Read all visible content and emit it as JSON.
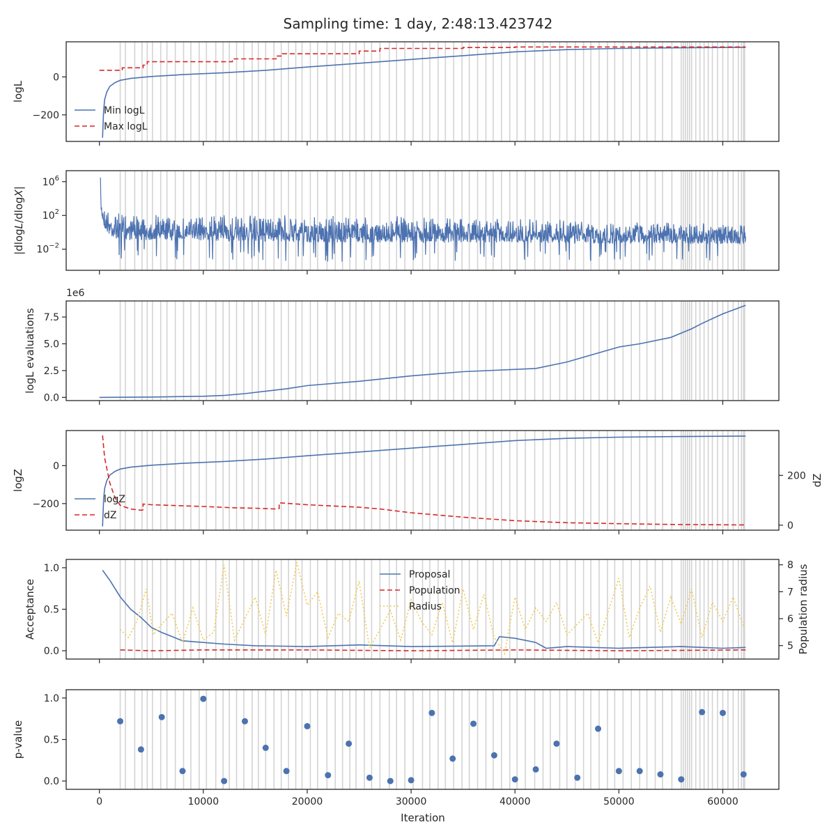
{
  "figure": {
    "title": "Sampling time: 1 day, 2:48:13.423742",
    "xlabel": "Iteration",
    "xticks": [
      0,
      10000,
      20000,
      30000,
      40000,
      50000,
      60000
    ]
  },
  "colors": {
    "blue": "#4c72b0",
    "red": "#d62728",
    "yellow": "#f2c94c",
    "insertion_lines": "#d3d3d3"
  },
  "chart_data": [
    {
      "id": "logl",
      "type": "line",
      "ylabel": "logL",
      "xlim": [
        -3200,
        65400
      ],
      "ylim": [
        -340,
        185
      ],
      "yticks": [
        {
          "v": 0,
          "t": "0"
        },
        {
          "v": -200,
          "t": "−200"
        }
      ],
      "legend": "lower-left",
      "series": [
        {
          "name": "Min logL",
          "style": "solid",
          "color": "blue",
          "x": [
            300,
            400,
            500,
            700,
            1000,
            1500,
            2000,
            3000,
            5000,
            8000,
            12000,
            16000,
            20000,
            25000,
            30000,
            35000,
            40000,
            45000,
            50000,
            55000,
            60000,
            62200
          ],
          "y": [
            -320,
            -180,
            -120,
            -80,
            -50,
            -30,
            -18,
            -8,
            2,
            12,
            22,
            35,
            52,
            72,
            92,
            112,
            132,
            144,
            150,
            153,
            155,
            156
          ]
        },
        {
          "name": "Max logL",
          "style": "dashed",
          "color": "red",
          "x": [
            0,
            2200,
            2200,
            4200,
            4200,
            4600,
            4600,
            12800,
            12800,
            17000,
            17000,
            17600,
            17600,
            25000,
            25000,
            27000,
            27000,
            35000,
            35000,
            40000,
            40000,
            62200
          ],
          "y": [
            35,
            35,
            48,
            48,
            62,
            62,
            80,
            80,
            95,
            95,
            110,
            110,
            122,
            122,
            136,
            136,
            150,
            150,
            155,
            155,
            158,
            158
          ]
        }
      ]
    },
    {
      "id": "dlogl",
      "type": "line",
      "ylabel": "|dlogL/dlogX|",
      "yscale": "log",
      "xlim": [
        -3200,
        65400
      ],
      "ylim_log10": [
        -4.5,
        7.3
      ],
      "yticks": [
        {
          "v": 6,
          "t": "10",
          "e": "6"
        },
        {
          "v": 2,
          "t": "10",
          "e": "2"
        },
        {
          "v": -2,
          "t": "10",
          "e": "−2"
        }
      ],
      "series": [
        {
          "name": "",
          "color": "blue",
          "x": [
            100,
            200,
            500,
            1000,
            2000,
            5000,
            10000,
            20000,
            30000,
            40000,
            50000,
            62200
          ],
          "upper_log10": [
            6.5,
            4.2,
            3.2,
            2.7,
            2.4,
            2.1,
            2.1,
            2.0,
            2.0,
            1.7,
            1.2,
            1.1
          ],
          "lower_log10": [
            2,
            1,
            -0.5,
            -1.5,
            -2,
            -2,
            -2,
            -2.3,
            -2.3,
            -2.2,
            -2.2,
            -2.2
          ]
        }
      ]
    },
    {
      "id": "evals",
      "type": "line",
      "ylabel": "logL evaluations",
      "offset_label": "1e6",
      "xlim": [
        -3200,
        65400
      ],
      "ylim": [
        -300000,
        9000000
      ],
      "yticks": [
        {
          "v": 0,
          "t": "0.0"
        },
        {
          "v": 2500000,
          "t": "2.5"
        },
        {
          "v": 5000000,
          "t": "5.0"
        },
        {
          "v": 7500000,
          "t": "7.5"
        }
      ],
      "series": [
        {
          "name": "",
          "color": "blue",
          "x": [
            0,
            5000,
            10000,
            12000,
            14000,
            18000,
            20000,
            25000,
            30000,
            35000,
            42000,
            45000,
            50000,
            52000,
            55000,
            56000,
            57000,
            58000,
            60000,
            62200
          ],
          "y": [
            0,
            30000,
            100000,
            180000,
            350000,
            800000,
            1100000,
            1500000,
            2000000,
            2400000,
            2700000,
            3300000,
            4700000,
            5000000,
            5600000,
            6000000,
            6400000,
            6900000,
            7800000,
            8600000
          ]
        }
      ]
    },
    {
      "id": "logz",
      "type": "line",
      "ylabel": "logZ",
      "ylabel_right": "dZ",
      "xlim": [
        -3200,
        65400
      ],
      "ylim": [
        -340,
        185
      ],
      "ylim_right": [
        -20,
        380
      ],
      "yticks": [
        {
          "v": 0,
          "t": "0"
        },
        {
          "v": -200,
          "t": "−200"
        }
      ],
      "yticks_right": [
        {
          "v": 0,
          "t": "0"
        },
        {
          "v": 200,
          "t": "200"
        }
      ],
      "legend": "lower-left",
      "series": [
        {
          "name": "logZ",
          "style": "solid",
          "color": "blue",
          "axis": "left",
          "x": [
            300,
            400,
            500,
            700,
            1000,
            1500,
            2000,
            3000,
            5000,
            8000,
            12000,
            16000,
            20000,
            25000,
            30000,
            35000,
            40000,
            45000,
            50000,
            55000,
            60000,
            62200
          ],
          "y": [
            -320,
            -180,
            -120,
            -80,
            -50,
            -30,
            -18,
            -8,
            2,
            12,
            22,
            35,
            52,
            72,
            92,
            112,
            132,
            144,
            150,
            153,
            155,
            156
          ]
        },
        {
          "name": "dZ",
          "style": "dashed",
          "color": "red",
          "axis": "right",
          "x": [
            300,
            500,
            1000,
            1500,
            2000,
            3000,
            4000,
            4200,
            4200,
            5000,
            10000,
            12800,
            15000,
            17000,
            17300,
            17300,
            20000,
            25000,
            27000,
            30000,
            35000,
            40000,
            45000,
            50000,
            55000,
            62200
          ],
          "y": [
            360,
            270,
            170,
            110,
            80,
            65,
            60,
            62,
            85,
            82,
            75,
            70,
            68,
            65,
            67,
            90,
            82,
            72,
            65,
            50,
            32,
            18,
            10,
            6,
            3,
            1
          ]
        }
      ]
    },
    {
      "id": "acceptance",
      "type": "line",
      "ylabel": "Acceptance",
      "ylabel_right": "Population radius",
      "xlim": [
        -3200,
        65400
      ],
      "ylim": [
        -0.1,
        1.1
      ],
      "ylim_right": [
        4.5,
        8.2
      ],
      "yticks": [
        {
          "v": 0,
          "t": "0.0"
        },
        {
          "v": 0.5,
          "t": "0.5"
        },
        {
          "v": 1,
          "t": "1.0"
        }
      ],
      "yticks_right": [
        {
          "v": 5,
          "t": "5"
        },
        {
          "v": 6,
          "t": "6"
        },
        {
          "v": 7,
          "t": "7"
        },
        {
          "v": 8,
          "t": "8"
        }
      ],
      "legend": "upper-center",
      "series": [
        {
          "name": "Proposal",
          "style": "solid",
          "color": "blue",
          "axis": "left",
          "x": [
            300,
            1000,
            2000,
            3000,
            4000,
            5000,
            6000,
            7000,
            8000,
            10000,
            12000,
            15000,
            20000,
            25000,
            30000,
            38000,
            38500,
            40000,
            42000,
            43000,
            45000,
            50000,
            56000,
            60000,
            62200
          ],
          "y": [
            0.97,
            0.85,
            0.65,
            0.5,
            0.4,
            0.28,
            0.22,
            0.17,
            0.12,
            0.1,
            0.08,
            0.06,
            0.05,
            0.07,
            0.05,
            0.06,
            0.17,
            0.15,
            0.1,
            0.03,
            0.05,
            0.03,
            0.05,
            0.03,
            0.04
          ]
        },
        {
          "name": "Population",
          "style": "dashed",
          "color": "red",
          "axis": "left",
          "x": [
            2000,
            5000,
            10000,
            20000,
            30000,
            40000,
            50000,
            62200
          ],
          "y": [
            0.01,
            0.0,
            0.01,
            0.01,
            0.0,
            0.01,
            0.0,
            0.01
          ]
        },
        {
          "name": "Radius",
          "style": "dotted",
          "color": "yellow",
          "axis": "right",
          "x": [
            2000,
            2800,
            3600,
            4500,
            5200,
            6000,
            7000,
            8000,
            9000,
            10000,
            11000,
            12000,
            13000,
            14000,
            15000,
            16000,
            17000,
            18000,
            19000,
            20000,
            21000,
            22000,
            23000,
            24000,
            25000,
            26000,
            27000,
            28000,
            29000,
            30000,
            31000,
            32000,
            33000,
            34000,
            35000,
            36000,
            37000,
            38000,
            39000,
            40000,
            41000,
            42000,
            43000,
            44000,
            45000,
            46000,
            47000,
            48000,
            49000,
            50000,
            51000,
            52000,
            53000,
            54000,
            55000,
            56000,
            57000,
            58000,
            59000,
            60000,
            61000,
            62000
          ],
          "y": [
            5.6,
            5.3,
            5.9,
            7.1,
            5.4,
            5.8,
            6.2,
            5.1,
            6.4,
            5.2,
            5.5,
            8.0,
            5.2,
            6.0,
            6.8,
            5.4,
            7.8,
            6.1,
            8.1,
            6.5,
            7.0,
            5.3,
            6.2,
            5.9,
            7.4,
            4.9,
            5.6,
            6.3,
            5.2,
            6.7,
            5.9,
            5.4,
            6.6,
            5.1,
            7.1,
            5.6,
            6.9,
            5.3,
            4.7,
            6.8,
            5.6,
            6.4,
            5.9,
            6.6,
            5.4,
            5.8,
            6.2,
            5.1,
            6.3,
            7.5,
            5.3,
            6.4,
            7.2,
            5.5,
            6.8,
            5.8,
            7.1,
            5.3,
            6.6,
            5.9,
            6.8,
            5.7
          ]
        }
      ]
    },
    {
      "id": "pvalue",
      "type": "scatter",
      "ylabel": "p-value",
      "xlim": [
        -3200,
        65400
      ],
      "ylim": [
        -0.1,
        1.1
      ],
      "yticks": [
        {
          "v": 0,
          "t": "0.0"
        },
        {
          "v": 0.5,
          "t": "0.5"
        },
        {
          "v": 1,
          "t": "1.0"
        }
      ],
      "series": [
        {
          "name": "",
          "color": "blue",
          "x": [
            2000,
            4000,
            6000,
            8000,
            10000,
            12000,
            14000,
            16000,
            18000,
            20000,
            22000,
            24000,
            26000,
            28000,
            30000,
            32000,
            34000,
            36000,
            38000,
            40000,
            42000,
            44000,
            46000,
            48000,
            50000,
            52000,
            54000,
            56000,
            58000,
            60000,
            62000
          ],
          "y": [
            0.72,
            0.38,
            0.77,
            0.12,
            0.99,
            0.0,
            0.72,
            0.4,
            0.12,
            0.66,
            0.07,
            0.45,
            0.04,
            0.0,
            0.01,
            0.82,
            0.27,
            0.69,
            0.31,
            0.02,
            0.14,
            0.45,
            0.04,
            0.63,
            0.12,
            0.12,
            0.08,
            0.02,
            0.83,
            0.82,
            0.08
          ]
        }
      ]
    }
  ],
  "insertion_lines": {
    "x": [
      2000,
      2500,
      3400,
      4100,
      4600,
      5100,
      5900,
      6500,
      7300,
      8100,
      8800,
      9600,
      10300,
      11200,
      11900,
      12500,
      13200,
      13900,
      14700,
      15300,
      16000,
      16800,
      17500,
      18200,
      18900,
      19500,
      20300,
      21000,
      21900,
      22700,
      23400,
      24100,
      24700,
      25500,
      26200,
      27000,
      27900,
      28600,
      29400,
      30200,
      31100,
      31800,
      32600,
      33300,
      34100,
      34900,
      35600,
      36400,
      37200,
      37900,
      38700,
      39500,
      40200,
      41000,
      41900,
      42700,
      43400,
      44300,
      45000,
      45800,
      46600,
      47300,
      48100,
      48900,
      49600,
      50400,
      51200,
      52000,
      52700,
      53500,
      54200,
      55100,
      56000,
      56200,
      56400,
      56600,
      56800,
      57000,
      57400,
      57800,
      58200,
      58600,
      59000,
      59500,
      60000,
      60500,
      61000,
      61500,
      61800,
      62000,
      62100
    ]
  }
}
